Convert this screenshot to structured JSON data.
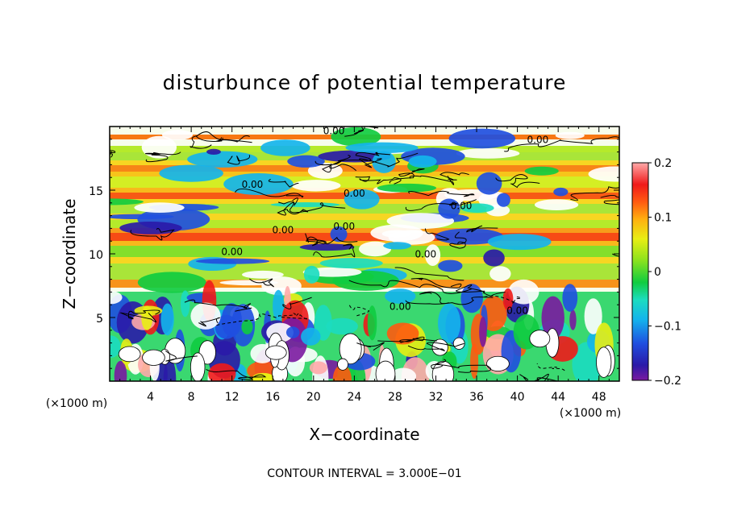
{
  "chart_data": {
    "type": "heatmap",
    "title": "disturbunce of potential temperature",
    "xlabel": "X−coordinate",
    "ylabel": "Z−coordinate",
    "x_unit": "(×1000 m)",
    "y_unit": "(×1000 m)",
    "xlim": [
      0,
      50
    ],
    "ylim": [
      0,
      20
    ],
    "x_ticks": [
      4,
      8,
      12,
      16,
      20,
      24,
      28,
      32,
      36,
      40,
      44,
      48
    ],
    "y_ticks": [
      5,
      10,
      15
    ],
    "colorbar": {
      "range": [
        -0.2,
        0.2
      ],
      "tick_values": [
        0.2,
        0.1,
        0,
        -0.1,
        -0.2
      ],
      "tick_labels": [
        "0.2",
        "0.1",
        "0",
        "−0.1",
        "−0.2"
      ]
    },
    "contour_interval_note": "CONTOUR INTERVAL = 3.000E−01",
    "contour_labels": [
      "0.00",
      "0.00",
      "0.00",
      "0.00",
      "0.00",
      "0.00",
      "0.00",
      "0.00",
      "0.00",
      "0.00",
      "0.00"
    ]
  }
}
